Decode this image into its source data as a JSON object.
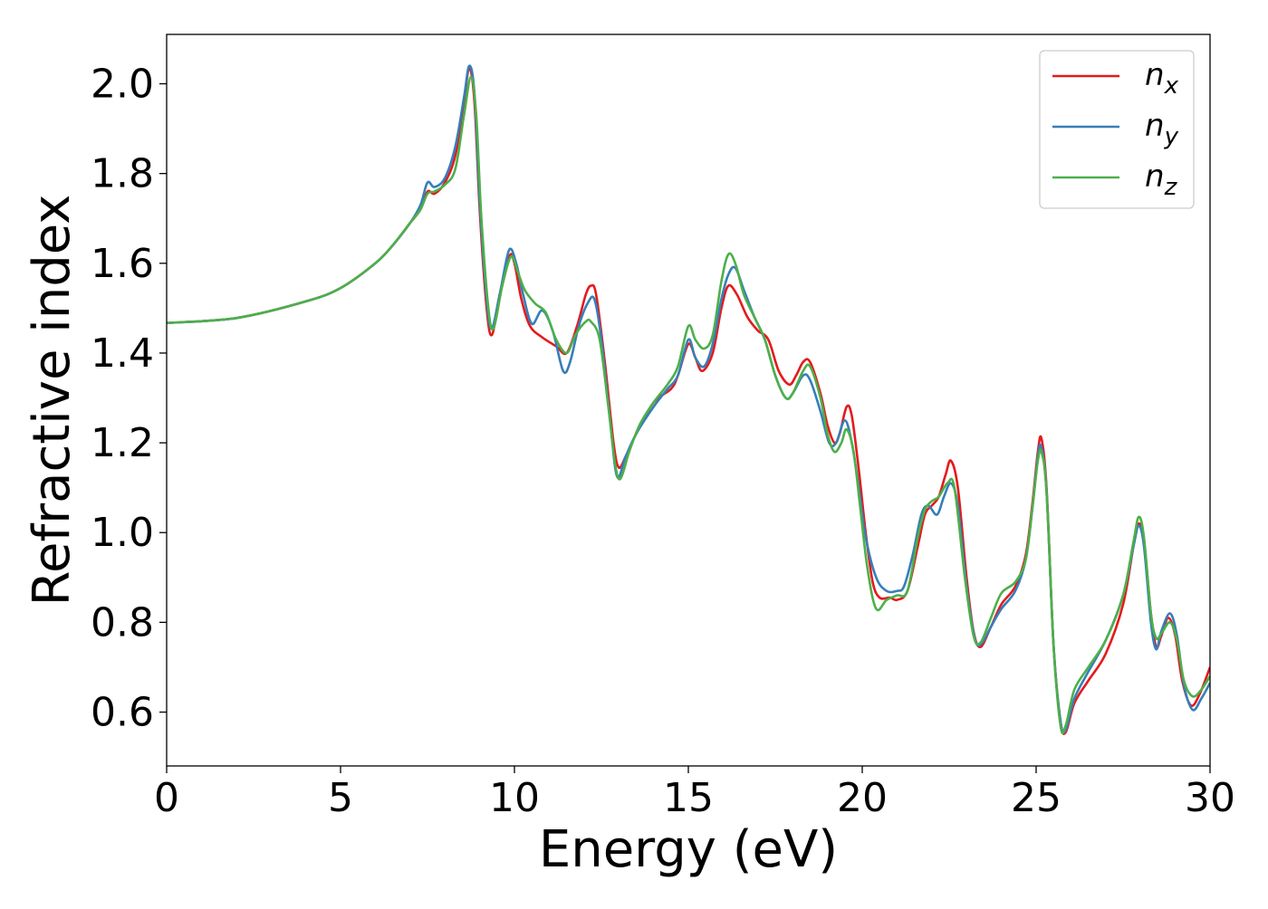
{
  "chart_data": {
    "type": "line",
    "title": "",
    "xlabel": "Energy (eV)",
    "ylabel": "Refractive index",
    "xlim": [
      0,
      30
    ],
    "ylim": [
      0.48,
      2.11
    ],
    "xticks": [
      0,
      5,
      10,
      15,
      20,
      25,
      30
    ],
    "xtick_labels": [
      "0",
      "5",
      "10",
      "15",
      "20",
      "25",
      "30"
    ],
    "yticks": [
      0.6,
      0.8,
      1.0,
      1.2,
      1.4,
      1.6,
      1.8,
      2.0
    ],
    "ytick_labels": [
      "0.6",
      "0.8",
      "1.0",
      "1.2",
      "1.4",
      "1.6",
      "1.8",
      "2.0"
    ],
    "grid": false,
    "legend_position": "top-right",
    "series": [
      {
        "name": "n_x",
        "label_main": "n",
        "label_sub": "x",
        "color": "#e41a1c",
        "points": [
          [
            0,
            1.467
          ],
          [
            2,
            1.478
          ],
          [
            4,
            1.515
          ],
          [
            5,
            1.545
          ],
          [
            6,
            1.6
          ],
          [
            6.5,
            1.64
          ],
          [
            7,
            1.69
          ],
          [
            7.3,
            1.72
          ],
          [
            7.5,
            1.76
          ],
          [
            7.7,
            1.755
          ],
          [
            8,
            1.78
          ],
          [
            8.3,
            1.84
          ],
          [
            8.55,
            1.96
          ],
          [
            8.7,
            2.035
          ],
          [
            8.85,
            1.96
          ],
          [
            9.0,
            1.72
          ],
          [
            9.2,
            1.5
          ],
          [
            9.35,
            1.44
          ],
          [
            9.55,
            1.52
          ],
          [
            9.85,
            1.615
          ],
          [
            10.0,
            1.6
          ],
          [
            10.2,
            1.52
          ],
          [
            10.45,
            1.46
          ],
          [
            10.8,
            1.435
          ],
          [
            11.2,
            1.415
          ],
          [
            11.5,
            1.4
          ],
          [
            11.8,
            1.46
          ],
          [
            12.05,
            1.53
          ],
          [
            12.2,
            1.55
          ],
          [
            12.35,
            1.53
          ],
          [
            12.6,
            1.38
          ],
          [
            12.85,
            1.2
          ],
          [
            13.0,
            1.145
          ],
          [
            13.2,
            1.17
          ],
          [
            13.5,
            1.22
          ],
          [
            14.0,
            1.29
          ],
          [
            14.5,
            1.32
          ],
          [
            14.7,
            1.35
          ],
          [
            15.0,
            1.42
          ],
          [
            15.2,
            1.39
          ],
          [
            15.4,
            1.36
          ],
          [
            15.7,
            1.4
          ],
          [
            15.95,
            1.5
          ],
          [
            16.15,
            1.55
          ],
          [
            16.4,
            1.53
          ],
          [
            16.7,
            1.48
          ],
          [
            17.0,
            1.45
          ],
          [
            17.3,
            1.43
          ],
          [
            17.6,
            1.36
          ],
          [
            17.9,
            1.33
          ],
          [
            18.1,
            1.35
          ],
          [
            18.3,
            1.38
          ],
          [
            18.5,
            1.38
          ],
          [
            18.8,
            1.31
          ],
          [
            19.0,
            1.24
          ],
          [
            19.2,
            1.2
          ],
          [
            19.35,
            1.22
          ],
          [
            19.55,
            1.28
          ],
          [
            19.7,
            1.26
          ],
          [
            19.9,
            1.14
          ],
          [
            20.1,
            1.0
          ],
          [
            20.3,
            0.89
          ],
          [
            20.5,
            0.855
          ],
          [
            20.8,
            0.855
          ],
          [
            21.0,
            0.85
          ],
          [
            21.3,
            0.87
          ],
          [
            21.6,
            0.97
          ],
          [
            21.8,
            1.04
          ],
          [
            22.0,
            1.06
          ],
          [
            22.2,
            1.08
          ],
          [
            22.4,
            1.13
          ],
          [
            22.55,
            1.16
          ],
          [
            22.75,
            1.1
          ],
          [
            23.0,
            0.9
          ],
          [
            23.2,
            0.78
          ],
          [
            23.4,
            0.745
          ],
          [
            23.7,
            0.79
          ],
          [
            24.0,
            0.84
          ],
          [
            24.4,
            0.88
          ],
          [
            24.7,
            0.95
          ],
          [
            24.9,
            1.07
          ],
          [
            25.05,
            1.18
          ],
          [
            25.15,
            1.21
          ],
          [
            25.3,
            1.1
          ],
          [
            25.5,
            0.75
          ],
          [
            25.7,
            0.58
          ],
          [
            25.85,
            0.555
          ],
          [
            26.1,
            0.62
          ],
          [
            26.5,
            0.67
          ],
          [
            27.0,
            0.73
          ],
          [
            27.5,
            0.84
          ],
          [
            27.8,
            0.97
          ],
          [
            27.95,
            1.02
          ],
          [
            28.1,
            0.98
          ],
          [
            28.3,
            0.82
          ],
          [
            28.45,
            0.745
          ],
          [
            28.6,
            0.77
          ],
          [
            28.8,
            0.81
          ],
          [
            29.0,
            0.77
          ],
          [
            29.2,
            0.67
          ],
          [
            29.45,
            0.615
          ],
          [
            29.7,
            0.64
          ],
          [
            30.0,
            0.7
          ]
        ]
      },
      {
        "name": "n_y",
        "label_main": "n",
        "label_sub": "y",
        "color": "#377eb8",
        "points": [
          [
            0,
            1.467
          ],
          [
            2,
            1.478
          ],
          [
            4,
            1.515
          ],
          [
            5,
            1.545
          ],
          [
            6,
            1.6
          ],
          [
            6.5,
            1.64
          ],
          [
            7,
            1.69
          ],
          [
            7.3,
            1.73
          ],
          [
            7.5,
            1.78
          ],
          [
            7.7,
            1.77
          ],
          [
            8,
            1.79
          ],
          [
            8.3,
            1.86
          ],
          [
            8.55,
            1.97
          ],
          [
            8.7,
            2.04
          ],
          [
            8.85,
            1.98
          ],
          [
            9.0,
            1.74
          ],
          [
            9.2,
            1.52
          ],
          [
            9.35,
            1.455
          ],
          [
            9.6,
            1.54
          ],
          [
            9.85,
            1.63
          ],
          [
            10.05,
            1.6
          ],
          [
            10.25,
            1.53
          ],
          [
            10.5,
            1.465
          ],
          [
            10.8,
            1.495
          ],
          [
            11.1,
            1.45
          ],
          [
            11.4,
            1.36
          ],
          [
            11.6,
            1.38
          ],
          [
            11.85,
            1.46
          ],
          [
            12.1,
            1.51
          ],
          [
            12.3,
            1.52
          ],
          [
            12.5,
            1.43
          ],
          [
            12.75,
            1.25
          ],
          [
            12.95,
            1.125
          ],
          [
            13.2,
            1.17
          ],
          [
            13.5,
            1.22
          ],
          [
            14.0,
            1.28
          ],
          [
            14.4,
            1.32
          ],
          [
            14.7,
            1.35
          ],
          [
            15.0,
            1.43
          ],
          [
            15.2,
            1.39
          ],
          [
            15.45,
            1.37
          ],
          [
            15.7,
            1.42
          ],
          [
            15.95,
            1.52
          ],
          [
            16.15,
            1.575
          ],
          [
            16.35,
            1.59
          ],
          [
            16.6,
            1.54
          ],
          [
            16.9,
            1.48
          ],
          [
            17.2,
            1.43
          ],
          [
            17.5,
            1.35
          ],
          [
            17.8,
            1.3
          ],
          [
            18.0,
            1.31
          ],
          [
            18.3,
            1.35
          ],
          [
            18.5,
            1.34
          ],
          [
            18.8,
            1.27
          ],
          [
            19.05,
            1.2
          ],
          [
            19.25,
            1.2
          ],
          [
            19.5,
            1.25
          ],
          [
            19.7,
            1.2
          ],
          [
            19.9,
            1.1
          ],
          [
            20.1,
            0.99
          ],
          [
            20.4,
            0.9
          ],
          [
            20.7,
            0.87
          ],
          [
            21.0,
            0.87
          ],
          [
            21.2,
            0.88
          ],
          [
            21.45,
            0.95
          ],
          [
            21.7,
            1.04
          ],
          [
            21.9,
            1.06
          ],
          [
            22.15,
            1.04
          ],
          [
            22.35,
            1.08
          ],
          [
            22.55,
            1.11
          ],
          [
            22.75,
            1.06
          ],
          [
            23.0,
            0.88
          ],
          [
            23.25,
            0.76
          ],
          [
            23.45,
            0.755
          ],
          [
            23.7,
            0.79
          ],
          [
            24.0,
            0.83
          ],
          [
            24.4,
            0.87
          ],
          [
            24.7,
            0.94
          ],
          [
            24.9,
            1.06
          ],
          [
            25.05,
            1.17
          ],
          [
            25.15,
            1.19
          ],
          [
            25.3,
            1.09
          ],
          [
            25.5,
            0.75
          ],
          [
            25.7,
            0.58
          ],
          [
            25.85,
            0.56
          ],
          [
            26.1,
            0.63
          ],
          [
            26.5,
            0.69
          ],
          [
            27.0,
            0.76
          ],
          [
            27.5,
            0.86
          ],
          [
            27.8,
            0.97
          ],
          [
            27.95,
            1.015
          ],
          [
            28.1,
            0.97
          ],
          [
            28.3,
            0.8
          ],
          [
            28.45,
            0.74
          ],
          [
            28.6,
            0.78
          ],
          [
            28.85,
            0.82
          ],
          [
            29.05,
            0.77
          ],
          [
            29.25,
            0.66
          ],
          [
            29.5,
            0.605
          ],
          [
            29.75,
            0.63
          ],
          [
            30.0,
            0.665
          ]
        ]
      },
      {
        "name": "n_z",
        "label_main": "n",
        "label_sub": "z",
        "color": "#4daf4a",
        "points": [
          [
            0,
            1.467
          ],
          [
            2,
            1.478
          ],
          [
            4,
            1.515
          ],
          [
            5,
            1.545
          ],
          [
            6,
            1.6
          ],
          [
            6.5,
            1.64
          ],
          [
            7,
            1.69
          ],
          [
            7.3,
            1.72
          ],
          [
            7.5,
            1.755
          ],
          [
            7.7,
            1.76
          ],
          [
            8,
            1.775
          ],
          [
            8.3,
            1.81
          ],
          [
            8.55,
            1.93
          ],
          [
            8.75,
            2.015
          ],
          [
            8.9,
            1.93
          ],
          [
            9.05,
            1.7
          ],
          [
            9.25,
            1.5
          ],
          [
            9.4,
            1.455
          ],
          [
            9.65,
            1.55
          ],
          [
            9.9,
            1.615
          ],
          [
            10.1,
            1.58
          ],
          [
            10.3,
            1.54
          ],
          [
            10.6,
            1.51
          ],
          [
            10.9,
            1.49
          ],
          [
            11.2,
            1.43
          ],
          [
            11.5,
            1.4
          ],
          [
            11.75,
            1.44
          ],
          [
            12.05,
            1.47
          ],
          [
            12.2,
            1.47
          ],
          [
            12.45,
            1.43
          ],
          [
            12.7,
            1.28
          ],
          [
            12.9,
            1.15
          ],
          [
            13.05,
            1.12
          ],
          [
            13.3,
            1.18
          ],
          [
            13.6,
            1.24
          ],
          [
            14.0,
            1.29
          ],
          [
            14.4,
            1.33
          ],
          [
            14.7,
            1.37
          ],
          [
            15.0,
            1.46
          ],
          [
            15.2,
            1.43
          ],
          [
            15.45,
            1.41
          ],
          [
            15.7,
            1.44
          ],
          [
            15.95,
            1.56
          ],
          [
            16.15,
            1.62
          ],
          [
            16.35,
            1.6
          ],
          [
            16.6,
            1.53
          ],
          [
            16.9,
            1.48
          ],
          [
            17.2,
            1.43
          ],
          [
            17.5,
            1.35
          ],
          [
            17.8,
            1.3
          ],
          [
            18.0,
            1.31
          ],
          [
            18.3,
            1.36
          ],
          [
            18.5,
            1.37
          ],
          [
            18.8,
            1.3
          ],
          [
            19.0,
            1.22
          ],
          [
            19.2,
            1.18
          ],
          [
            19.4,
            1.2
          ],
          [
            19.55,
            1.23
          ],
          [
            19.75,
            1.18
          ],
          [
            19.95,
            1.05
          ],
          [
            20.15,
            0.92
          ],
          [
            20.4,
            0.83
          ],
          [
            20.7,
            0.85
          ],
          [
            21.0,
            0.86
          ],
          [
            21.3,
            0.87
          ],
          [
            21.6,
            0.99
          ],
          [
            21.8,
            1.05
          ],
          [
            22.0,
            1.07
          ],
          [
            22.2,
            1.08
          ],
          [
            22.45,
            1.11
          ],
          [
            22.65,
            1.1
          ],
          [
            22.95,
            0.9
          ],
          [
            23.2,
            0.77
          ],
          [
            23.4,
            0.755
          ],
          [
            23.7,
            0.81
          ],
          [
            24.0,
            0.865
          ],
          [
            24.4,
            0.89
          ],
          [
            24.7,
            0.94
          ],
          [
            24.9,
            1.06
          ],
          [
            25.05,
            1.16
          ],
          [
            25.15,
            1.18
          ],
          [
            25.3,
            1.09
          ],
          [
            25.5,
            0.75
          ],
          [
            25.7,
            0.57
          ],
          [
            25.85,
            0.57
          ],
          [
            26.1,
            0.65
          ],
          [
            26.5,
            0.7
          ],
          [
            27.0,
            0.76
          ],
          [
            27.5,
            0.86
          ],
          [
            27.8,
            0.98
          ],
          [
            27.95,
            1.035
          ],
          [
            28.1,
            0.99
          ],
          [
            28.3,
            0.82
          ],
          [
            28.45,
            0.765
          ],
          [
            28.6,
            0.775
          ],
          [
            28.85,
            0.8
          ],
          [
            29.05,
            0.76
          ],
          [
            29.25,
            0.67
          ],
          [
            29.5,
            0.635
          ],
          [
            29.75,
            0.65
          ],
          [
            30.0,
            0.68
          ]
        ]
      }
    ]
  }
}
